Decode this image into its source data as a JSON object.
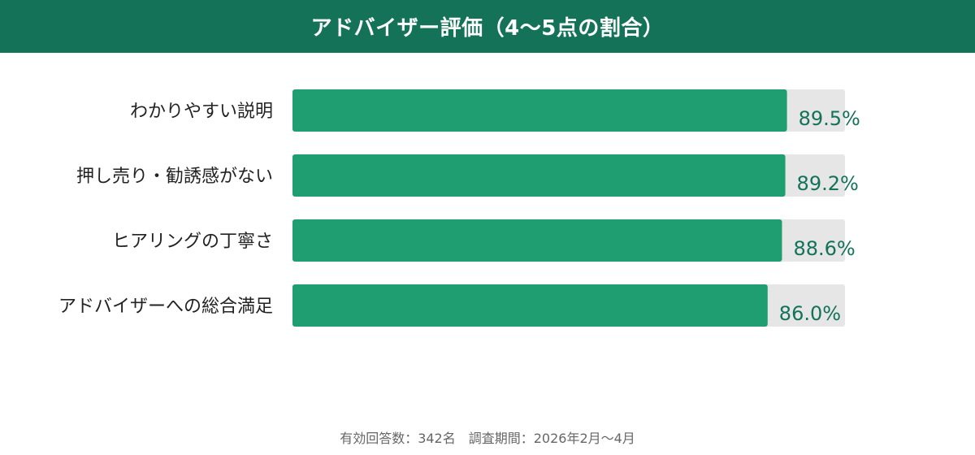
{
  "header": {
    "title": "アドバイザー評価（4〜5点の割合）"
  },
  "footer": {
    "note": "有効回答数：342名　調査期間：2026年2月〜4月"
  },
  "colors": {
    "header_bg": "#137257",
    "bar_fill": "#1f9e72",
    "bar_track": "#e6e6e6",
    "value_text": "#137257"
  },
  "chart_data": {
    "type": "bar",
    "orientation": "horizontal",
    "title": "アドバイザー評価（4〜5点の割合）",
    "categories": [
      "わかりやすい説明",
      "押し売り・勧誘感がない",
      "ヒアリングの丁寧さ",
      "アドバイザーへの総合満足"
    ],
    "values": [
      89.5,
      89.2,
      88.6,
      86.0
    ],
    "value_labels": [
      "89.5%",
      "89.2%",
      "88.6%",
      "86.0%"
    ],
    "unit": "%",
    "xlim": [
      0,
      100
    ],
    "xlabel": "",
    "ylabel": "",
    "grid": false,
    "legend": "none"
  }
}
